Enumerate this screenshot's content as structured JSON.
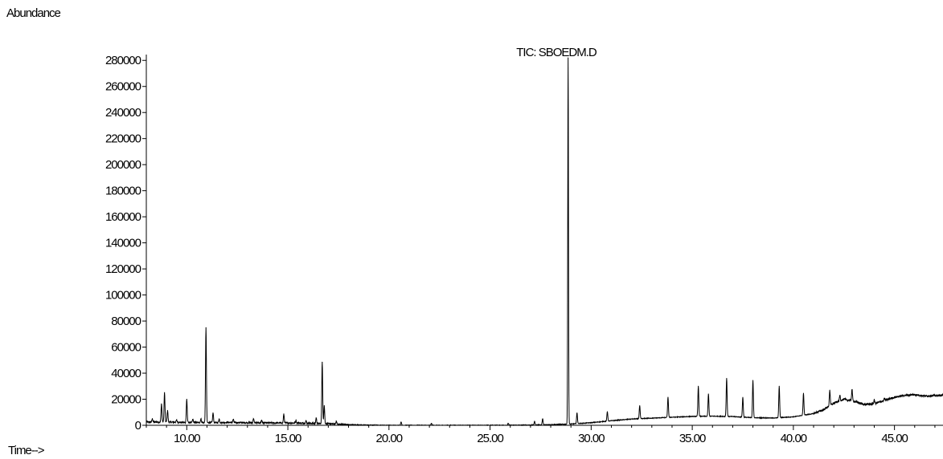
{
  "chart_data": {
    "type": "line",
    "title": "TIC: SBOEDM.D",
    "ylabel": "Abundance",
    "xlabel": "Time-->",
    "xlim": [
      8.0,
      47.4
    ],
    "ylim": [
      0,
      282000
    ],
    "x_ticks": [
      "10.00",
      "15.00",
      "20.00",
      "25.00",
      "30.00",
      "35.00",
      "40.00",
      "45.00"
    ],
    "y_ticks": [
      "0",
      "20000",
      "40000",
      "60000",
      "80000",
      "100000",
      "120000",
      "140000",
      "160000",
      "180000",
      "200000",
      "220000",
      "240000",
      "260000",
      "280000"
    ],
    "grid": false,
    "legend": "none",
    "series": [
      {
        "baseline": [
          [
            8.0,
            2500
          ],
          [
            9.0,
            2500
          ],
          [
            10.0,
            2200
          ],
          [
            11.0,
            2000
          ],
          [
            12.0,
            2200
          ],
          [
            13.0,
            2000
          ],
          [
            14.0,
            1800
          ],
          [
            15.0,
            1800
          ],
          [
            16.0,
            1600
          ],
          [
            17.0,
            1200
          ],
          [
            18.0,
            500
          ],
          [
            19.0,
            200
          ],
          [
            20.0,
            0
          ],
          [
            22.0,
            0
          ],
          [
            25.0,
            0
          ],
          [
            27.0,
            200
          ],
          [
            28.0,
            500
          ],
          [
            29.0,
            1000
          ],
          [
            30.0,
            2000
          ],
          [
            31.0,
            3500
          ],
          [
            32.0,
            4800
          ],
          [
            33.0,
            5500
          ],
          [
            34.0,
            6200
          ],
          [
            35.0,
            6800
          ],
          [
            36.0,
            7000
          ],
          [
            37.0,
            6700
          ],
          [
            38.0,
            5800
          ],
          [
            39.0,
            5600
          ],
          [
            40.0,
            6500
          ],
          [
            41.0,
            9000
          ],
          [
            41.5,
            12000
          ],
          [
            42.0,
            17000
          ],
          [
            42.5,
            20000
          ],
          [
            43.0,
            18500
          ],
          [
            43.5,
            16000
          ],
          [
            44.0,
            16500
          ],
          [
            44.5,
            19000
          ],
          [
            45.0,
            21500
          ],
          [
            45.5,
            23000
          ],
          [
            46.0,
            23500
          ],
          [
            46.5,
            22500
          ],
          [
            47.4,
            23000
          ]
        ],
        "peaks": [
          [
            8.3,
            5000
          ],
          [
            8.75,
            16500
          ],
          [
            8.9,
            25000
          ],
          [
            9.05,
            11500
          ],
          [
            9.5,
            4000
          ],
          [
            10.0,
            20000
          ],
          [
            10.3,
            4500
          ],
          [
            10.7,
            5000
          ],
          [
            10.95,
            75000
          ],
          [
            11.3,
            9500
          ],
          [
            11.6,
            5000
          ],
          [
            12.3,
            4500
          ],
          [
            13.3,
            5000
          ],
          [
            13.7,
            4000
          ],
          [
            14.8,
            8500
          ],
          [
            15.4,
            3500
          ],
          [
            15.9,
            3500
          ],
          [
            16.4,
            5500
          ],
          [
            16.7,
            48500
          ],
          [
            16.8,
            15000
          ],
          [
            17.4,
            3000
          ],
          [
            20.6,
            2500
          ],
          [
            22.1,
            1500
          ],
          [
            25.9,
            1500
          ],
          [
            27.2,
            3000
          ],
          [
            27.6,
            5000
          ],
          [
            28.86,
            282000
          ],
          [
            29.3,
            9500
          ],
          [
            30.8,
            10500
          ],
          [
            32.4,
            15000
          ],
          [
            33.8,
            21500
          ],
          [
            35.3,
            30000
          ],
          [
            35.8,
            24000
          ],
          [
            36.7,
            36000
          ],
          [
            37.5,
            21500
          ],
          [
            38.0,
            34500
          ],
          [
            39.3,
            30000
          ],
          [
            40.5,
            24500
          ],
          [
            41.8,
            27000
          ],
          [
            42.3,
            23000
          ],
          [
            42.9,
            27500
          ],
          [
            44.0,
            19500
          ],
          [
            44.5,
            20500
          ]
        ]
      }
    ]
  }
}
